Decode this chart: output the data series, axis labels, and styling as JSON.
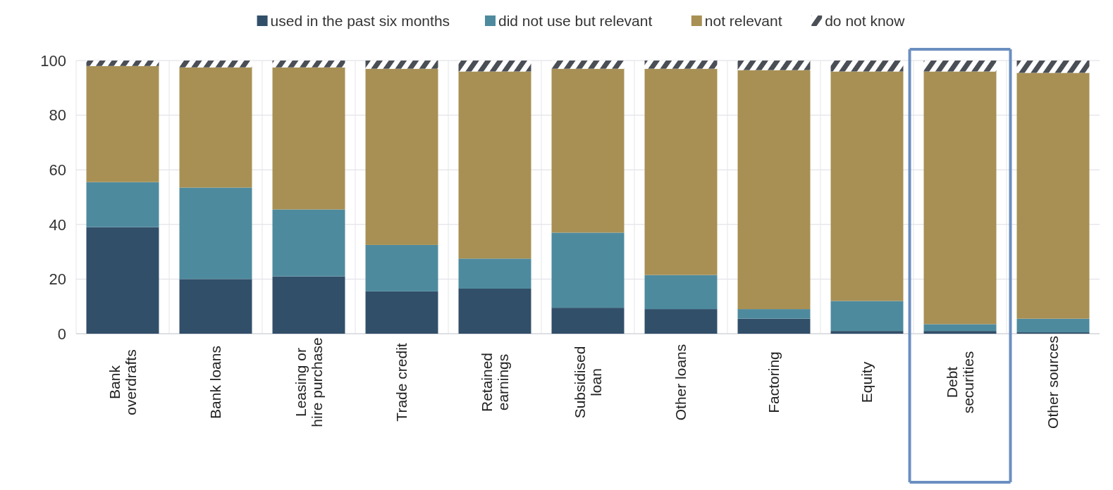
{
  "chart_data": {
    "type": "bar",
    "stacked": true,
    "categories": [
      "Bank\noverdrafts",
      "Bank loans",
      "Leasing or\nhire purchase",
      "Trade credit",
      "Retained\nearnings",
      "Subsidised\nloan",
      "Other loans",
      "Factoring",
      "Equity",
      "Debt\nsecurities",
      "Other sources"
    ],
    "series": [
      {
        "name": "used in the past six months",
        "color": "#324f69",
        "values": [
          39,
          20,
          21,
          15.5,
          16.5,
          9.5,
          9,
          5.5,
          1,
          1,
          0.5
        ]
      },
      {
        "name": "did not use but relevant",
        "color": "#4e8a9e",
        "values": [
          16.5,
          33.5,
          24.5,
          17,
          11,
          27.5,
          12.5,
          3.5,
          11,
          2.5,
          5
        ]
      },
      {
        "name": "not relevant",
        "color": "#a89054",
        "values": [
          42.5,
          44,
          52,
          64.5,
          68.5,
          60,
          75.5,
          87.5,
          84,
          92.5,
          90
        ]
      },
      {
        "name": "do not know",
        "color": "#4a4e55",
        "values": [
          2,
          2.5,
          2.5,
          3,
          4,
          3,
          3,
          3.5,
          4,
          4,
          4.5
        ]
      }
    ],
    "ylim": [
      0,
      100
    ],
    "yticks": [
      0,
      20,
      40,
      60,
      80,
      100
    ],
    "grid": true,
    "legend": "top"
  }
}
